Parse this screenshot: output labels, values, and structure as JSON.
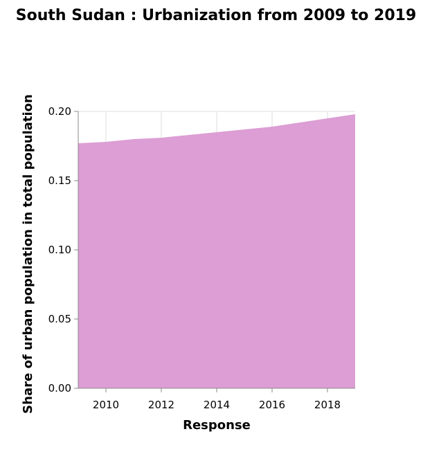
{
  "chart_data": {
    "type": "area",
    "title": "South Sudan : Urbanization from 2009 to 2019",
    "xlabel": "Response",
    "ylabel": "Share of urban population in total population",
    "x": [
      2009,
      2010,
      2011,
      2012,
      2013,
      2014,
      2015,
      2016,
      2017,
      2018,
      2019
    ],
    "series": [
      {
        "values": [
          0.177,
          0.178,
          0.18,
          0.181,
          0.183,
          0.185,
          0.187,
          0.189,
          0.192,
          0.195,
          0.198
        ]
      }
    ],
    "xlim": [
      2009,
      2019
    ],
    "ylim": [
      0,
      0.2
    ],
    "xticks": [
      "2010",
      "2012",
      "2014",
      "2016",
      "2018"
    ],
    "xtick_values": [
      2010,
      2012,
      2014,
      2016,
      2018
    ],
    "yticks": [
      "0.00",
      "0.05",
      "0.10",
      "0.15",
      "0.20"
    ],
    "ytick_values": [
      0,
      0.05,
      0.1,
      0.15,
      0.2
    ],
    "grid": true,
    "fill_color": "#dc9ed4"
  }
}
